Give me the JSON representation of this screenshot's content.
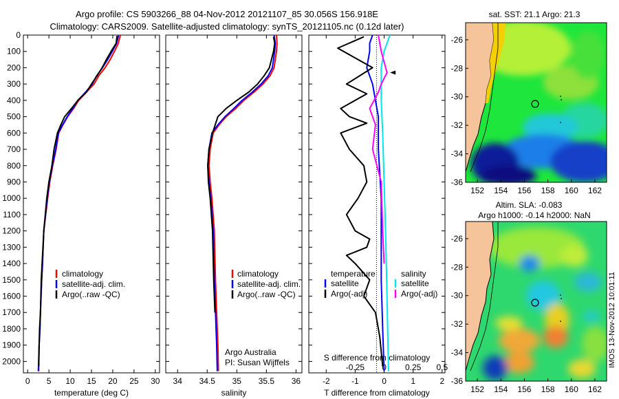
{
  "header": {
    "line1": "Argo profile: CS 5903266_88 04-Nov-2012 20121107_85 30.056S 156.918E",
    "line2": "Climatology: CARS2009. Satellite-adjusted climatology: synTS_20121105.nc (0.12d later)"
  },
  "colors": {
    "climatology": "#ff0000",
    "satellite": "#0000ff",
    "argo": "#000000",
    "sal_satellite": "#00e5ee",
    "sal_argo": "#ff00ff"
  },
  "chart_data": [
    {
      "type": "line",
      "name": "temperature-profile",
      "xlabel": "temperature (deg C)",
      "ylabel": "",
      "xlim": [
        -1,
        31
      ],
      "ylim": [
        2070,
        0
      ],
      "xticks": [
        0,
        5,
        10,
        15,
        20,
        25,
        30
      ],
      "xticklabels": [
        "0",
        "5",
        "10",
        "15",
        "20",
        "25",
        "30"
      ],
      "yticks": [
        0,
        100,
        200,
        300,
        400,
        500,
        600,
        700,
        800,
        900,
        1000,
        1100,
        1200,
        1300,
        1400,
        1500,
        1600,
        1700,
        1800,
        1900,
        2000
      ],
      "yticklabels": [
        "0",
        "100",
        "200",
        "300",
        "400",
        "500",
        "600",
        "700",
        "800",
        "900",
        "1000",
        "1100",
        "1200",
        "1300",
        "1400",
        "1500",
        "1600",
        "1700",
        "1800",
        "1900",
        "2000"
      ],
      "legend": {
        "position": "bottom-right",
        "entries": [
          "climatology",
          "satellite-adj. clim.",
          "Argo(..raw -QC)"
        ]
      },
      "series": [
        {
          "name": "climatology",
          "color": "#ff0000",
          "x": [
            21.8,
            21.3,
            20.4,
            19.4,
            18.2,
            16.7,
            15.6,
            13.8,
            12.0,
            10.8,
            9.4,
            8.3,
            7.3,
            6.7,
            5.9,
            5.2,
            4.7,
            3.8,
            3.5,
            3.3,
            3.0,
            2.9,
            2.7,
            2.6
          ],
          "y": [
            0,
            50,
            100,
            150,
            200,
            250,
            300,
            350,
            400,
            450,
            500,
            550,
            600,
            700,
            800,
            900,
            1000,
            1200,
            1400,
            1500,
            1700,
            1800,
            1900,
            2060
          ]
        },
        {
          "name": "satellite-adj. clim.",
          "color": "#0000ff",
          "x": [
            21.4,
            20.9,
            19.9,
            18.8,
            17.6,
            16.2,
            15.2,
            13.6,
            11.8,
            10.6,
            9.3,
            8.2,
            7.2,
            6.6,
            5.8,
            5.1,
            4.6,
            3.8,
            3.5,
            3.3,
            3.0,
            2.9,
            2.7,
            2.5
          ],
          "y": [
            0,
            50,
            100,
            150,
            200,
            250,
            300,
            350,
            400,
            450,
            500,
            550,
            600,
            700,
            800,
            900,
            1000,
            1200,
            1400,
            1500,
            1700,
            1800,
            1900,
            2060
          ]
        },
        {
          "name": "Argo(..raw -QC)",
          "color": "#000000",
          "x": [
            21.0,
            20.8,
            19.6,
            18.5,
            17.5,
            16.3,
            15.0,
            13.8,
            11.8,
            10.3,
            8.7,
            7.8,
            7.0,
            6.2,
            5.7,
            5.0,
            4.5,
            3.8,
            3.4,
            3.2,
            3.0,
            2.8,
            2.7,
            2.6
          ],
          "y": [
            5,
            50,
            100,
            150,
            200,
            250,
            300,
            350,
            400,
            450,
            500,
            550,
            600,
            700,
            800,
            900,
            1000,
            1200,
            1400,
            1500,
            1700,
            1800,
            1900,
            2030
          ]
        }
      ]
    },
    {
      "type": "line",
      "name": "salinity-profile",
      "xlabel": "salinity",
      "xlim": [
        33.8,
        36.1
      ],
      "ylim": [
        2070,
        0
      ],
      "xticks": [
        34,
        34.5,
        35,
        35.5,
        36
      ],
      "xticklabels": [
        "34",
        "34.5",
        "35",
        "35.5",
        "36"
      ],
      "legend": {
        "position": "bottom-right",
        "entries": [
          "climatology",
          "satellite-adj. clim.",
          "Argo(..raw -QC)"
        ]
      },
      "annotations": [
        "Argo Australia",
        "PI: Susan Wijffels"
      ],
      "series": [
        {
          "name": "climatology",
          "color": "#ff0000",
          "x": [
            35.67,
            35.68,
            35.67,
            35.63,
            35.56,
            35.44,
            35.29,
            35.12,
            34.98,
            34.82,
            34.7,
            34.6,
            34.55,
            34.53,
            34.55,
            34.58,
            34.62,
            34.64,
            34.66,
            34.68,
            34.69
          ],
          "y": [
            0,
            50,
            100,
            200,
            250,
            300,
            350,
            400,
            450,
            500,
            550,
            600,
            700,
            800,
            900,
            1000,
            1200,
            1500,
            1700,
            1900,
            2060
          ]
        },
        {
          "name": "satellite-adj. clim.",
          "color": "#0000ff",
          "x": [
            35.63,
            35.65,
            35.64,
            35.6,
            35.53,
            35.41,
            35.26,
            35.09,
            34.95,
            34.8,
            34.68,
            34.58,
            34.53,
            34.51,
            34.53,
            34.56,
            34.6,
            34.62,
            34.64,
            34.66,
            34.67
          ],
          "y": [
            0,
            50,
            100,
            200,
            250,
            300,
            350,
            400,
            450,
            500,
            550,
            600,
            700,
            800,
            900,
            1000,
            1200,
            1500,
            1700,
            1900,
            2060
          ]
        },
        {
          "name": "Argo(..raw -QC)",
          "color": "#000000",
          "x": [
            35.62,
            35.64,
            35.62,
            35.55,
            35.46,
            35.35,
            35.2,
            35.0,
            34.82,
            34.68,
            34.59,
            34.53,
            34.51,
            34.52,
            34.55,
            34.59,
            34.61,
            34.63
          ],
          "y": [
            10,
            50,
            100,
            200,
            250,
            300,
            350,
            400,
            450,
            500,
            600,
            700,
            800,
            900,
            1000,
            1200,
            1500,
            1700
          ]
        }
      ]
    },
    {
      "type": "line",
      "name": "difference-profile",
      "xlabel": "T difference from climatology",
      "xlabel_top": "S difference from climatology",
      "xlim": [
        -2.6,
        2.1
      ],
      "ylim": [
        2070,
        0
      ],
      "xticks": [
        -2,
        -1,
        0,
        1,
        2
      ],
      "xticklabels": [
        "-2",
        "-1",
        "0",
        "1",
        "2"
      ],
      "s_xticks": [
        -2,
        -1,
        0,
        1,
        2
      ],
      "s_xticklabels": [
        "-0.5",
        "-0.25",
        "0",
        "0.25",
        "0.5"
      ],
      "legend": {
        "position": "bottom",
        "temperature_title": "temperature",
        "salinity_title": "salinity",
        "entries": [
          "satellite",
          "Argo(-adj)",
          "satellite",
          "Argo(-adj)"
        ]
      },
      "series": [
        {
          "name": "T satellite",
          "color": "#0000ff",
          "x": [
            -0.4,
            -0.5,
            -0.5,
            -0.6,
            -0.4,
            -0.3,
            -0.2,
            -0.2,
            -0.1,
            -0.1,
            -0.05,
            0
          ],
          "y": [
            0,
            50,
            100,
            200,
            300,
            400,
            500,
            700,
            1000,
            1500,
            1800,
            2060
          ]
        },
        {
          "name": "T Argo(-adj)",
          "color": "#000000",
          "x": [
            -0.7,
            -1.6,
            -1.0,
            -0.4,
            -1.3,
            -0.6,
            -1.5,
            -1.2,
            -0.6,
            -1.5,
            -1.2,
            -0.7,
            -0.6,
            -0.9,
            -1.3,
            -1.0,
            -0.5,
            -0.6,
            -1.3,
            -1.0,
            -0.5,
            -0.7,
            -0.3,
            -0.15,
            -0.05
          ],
          "y": [
            10,
            80,
            140,
            200,
            300,
            360,
            450,
            500,
            540,
            600,
            700,
            800,
            900,
            1000,
            1100,
            1200,
            1250,
            1300,
            1350,
            1400,
            1500,
            1600,
            1700,
            1850,
            2030
          ]
        },
        {
          "name": "S satellite",
          "color": "#00e5ee",
          "x": [
            0.2,
            0.1,
            0.0,
            -0.1,
            -0.1,
            -0.05,
            0,
            0.05,
            0.1,
            0.15
          ],
          "y": [
            0,
            50,
            100,
            200,
            400,
            600,
            900,
            1200,
            1600,
            2060
          ]
        },
        {
          "name": "S Argo(-adj)",
          "color": "#ff00ff",
          "x": [
            -0.2,
            -0.1,
            0.1,
            -0.1,
            -0.2,
            -0.5,
            -0.3,
            -0.4,
            -0.1,
            -0.05,
            0
          ],
          "y": [
            0,
            100,
            230,
            300,
            350,
            450,
            550,
            700,
            900,
            1200,
            1400
          ]
        }
      ]
    }
  ],
  "sst_map": {
    "title": "sat. SST: 21.1 Argo: 21.3",
    "xticklabels": [
      "152",
      "154",
      "156",
      "158",
      "160",
      "162"
    ],
    "yticklabels": [
      "-26",
      "-28",
      "-30",
      "-32",
      "-34",
      "-36"
    ]
  },
  "sla_map": {
    "title1": "Altim. SLA: -0.083",
    "title2": "Argo h1000: -0.14 h2000: NaN",
    "xticklabels": [
      "152",
      "154",
      "156",
      "158",
      "160",
      "162"
    ],
    "yticklabels": [
      "-26",
      "-28",
      "-30",
      "-32",
      "-34",
      "-36"
    ]
  },
  "credit": "IMOS 13-Nov-2012 10:01:11"
}
